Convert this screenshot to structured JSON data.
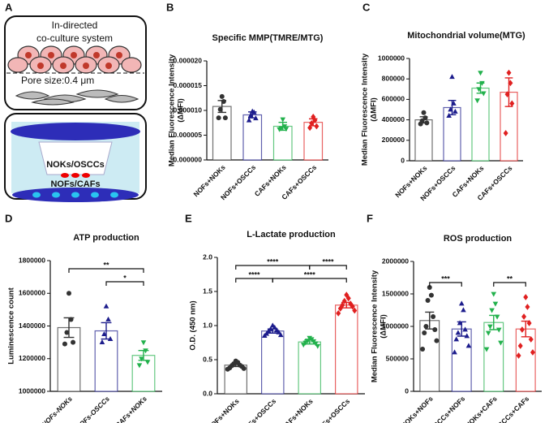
{
  "schematic": {
    "letter": "A",
    "title": [
      "In-directed",
      "co-culture system"
    ],
    "pore": "Pore size:0.4 μm",
    "upper": "NOKs/OSCCs",
    "lower": "NOFs/CAFs"
  },
  "chart_data": [
    {
      "type": "bar",
      "panel": "B",
      "title": "Specific MMP(TMRE/MTG)",
      "ylabel": [
        "Median Fluorescence Intensity",
        "(ΔMFI)"
      ],
      "categories": [
        "NOFs+NOKs",
        "NOFs+OSCCs",
        "CAFs+NOKs",
        "CAFs+OSCCs"
      ],
      "values": [
        1.08e-05,
        9.1e-06,
        6.8e-06,
        7.6e-06
      ],
      "errors": [
        1.2e-06,
        6e-07,
        8e-07,
        7e-07
      ],
      "points": [
        [
          1.28e-05,
          1.18e-05,
          1.02e-05,
          8.5e-06,
          8.5e-06
        ],
        [
          9.8e-06,
          9.6e-06,
          9e-06,
          8.4e-06,
          8e-06
        ],
        [
          8.2e-06,
          6.8e-06,
          6.4e-06,
          6.3e-06,
          6.2e-06
        ],
        [
          8.7e-06,
          8e-06,
          7.4e-06,
          6.8e-06,
          6.5e-06
        ]
      ],
      "colors": [
        "#333333",
        "#1c1c8c",
        "#22b14c",
        "#e02020"
      ],
      "markers": [
        "circle",
        "triangle-up",
        "triangle-down",
        "diamond"
      ],
      "ylim": [
        0,
        2e-05
      ],
      "yticks": [
        {
          "value": 0,
          "label": "0.000000"
        },
        {
          "value": 5e-06,
          "label": "0.000005"
        },
        {
          "value": 1e-05,
          "label": "0.000010"
        },
        {
          "value": 1.5e-05,
          "label": "0.000015"
        },
        {
          "value": 2e-05,
          "label": "0.000020"
        }
      ],
      "annotations": []
    },
    {
      "type": "bar",
      "panel": "C",
      "title": "Mitochondrial volume(MTG)",
      "ylabel": [
        "Median Fluorescence Intensity",
        "(ΔMFI)"
      ],
      "categories": [
        "NOFs+NOKs",
        "NOFs+OSCCs",
        "CAFs+NOKs",
        "CAFs+OSCCs"
      ],
      "values": [
        400000,
        520000,
        710000,
        670000
      ],
      "errors": [
        30000,
        70000,
        50000,
        140000
      ],
      "points": [
        [
          470000,
          420000,
          390000,
          370000,
          360000
        ],
        [
          820000,
          560000,
          500000,
          480000,
          440000
        ],
        [
          860000,
          760000,
          700000,
          660000,
          590000
        ],
        [
          860000,
          760000,
          650000,
          560000,
          270000
        ]
      ],
      "colors": [
        "#333333",
        "#1c1c8c",
        "#22b14c",
        "#e02020"
      ],
      "markers": [
        "circle",
        "triangle-up",
        "triangle-down",
        "diamond"
      ],
      "ylim": [
        0,
        1000000
      ],
      "yticks": [
        0,
        200000,
        400000,
        600000,
        800000,
        1000000
      ],
      "annotations": []
    },
    {
      "type": "bar",
      "panel": "D",
      "title": "ATP production",
      "ylabel": [
        "Luminescence count"
      ],
      "category_style": "italic",
      "categories": [
        "NOFs-NOKs",
        "NOFs-OSCCs",
        "CAFs+NOKs"
      ],
      "values": [
        1390000,
        1370000,
        1220000
      ],
      "errors": [
        60000,
        50000,
        30000
      ],
      "points": [
        [
          1600000,
          1440000,
          1360000,
          1300000,
          1290000
        ],
        [
          1520000,
          1440000,
          1350000,
          1320000,
          1300000
        ],
        [
          1300000,
          1250000,
          1200000,
          1180000,
          1160000
        ]
      ],
      "colors": [
        "#333333",
        "#1c1c8c",
        "#22b14c"
      ],
      "markers": [
        "circle",
        "triangle-up",
        "triangle-down"
      ],
      "ylim": [
        1000000,
        1800000
      ],
      "yticks": [
        1000000,
        1200000,
        1400000,
        1600000,
        1800000
      ],
      "annotations": [
        {
          "text": "*",
          "from": 1,
          "to": 2
        },
        {
          "text": "**",
          "from": 0,
          "to": 2
        }
      ]
    },
    {
      "type": "bar",
      "panel": "E",
      "title": "L-Lactate production",
      "ylabel": [
        "O.D. (450 nm)"
      ],
      "categories": [
        "NOFs+NOKs",
        "NOFs+OSCCs",
        "CAFs+NOKs",
        "CAFs+OSCCs"
      ],
      "values": [
        0.42,
        0.92,
        0.76,
        1.3
      ],
      "errors": [
        0.02,
        0.03,
        0.03,
        0.04
      ],
      "points": [
        [
          0.48,
          0.46,
          0.44,
          0.42,
          0.41,
          0.4,
          0.38,
          0.37,
          0.36
        ],
        [
          1.0,
          0.97,
          0.95,
          0.93,
          0.92,
          0.9,
          0.88,
          0.86,
          0.85
        ],
        [
          0.82,
          0.8,
          0.78,
          0.77,
          0.75,
          0.74,
          0.72,
          0.7
        ],
        [
          1.45,
          1.4,
          1.36,
          1.32,
          1.3,
          1.28,
          1.25,
          1.22,
          1.18
        ]
      ],
      "colors": [
        "#333333",
        "#1c1c8c",
        "#22b14c",
        "#e02020"
      ],
      "markers": [
        "circle",
        "triangle-up",
        "triangle-down",
        "diamond"
      ],
      "ylim": [
        0,
        2.0
      ],
      "yticks": [
        {
          "value": 0,
          "label": "0.0"
        },
        {
          "value": 0.5,
          "label": "0.5"
        },
        {
          "value": 1,
          "label": "1.0"
        },
        {
          "value": 1.5,
          "label": "1.5"
        },
        {
          "value": 2,
          "label": "2.0"
        }
      ],
      "annotations": [
        {
          "text": "****",
          "from": 0,
          "to": 1
        },
        {
          "text": "****",
          "from": 1,
          "to": 3
        },
        {
          "text": "****",
          "from": 0,
          "to": 2
        },
        {
          "text": "****",
          "from": 2,
          "to": 3
        }
      ]
    },
    {
      "type": "bar",
      "panel": "F",
      "title": "ROS production",
      "ylabel": [
        "Median Fluorescence Intensity",
        "(ΔMFI)"
      ],
      "categories": [
        "NOKs+NOFs",
        "OSCCs+NOFs",
        "NOKs+CAFs",
        "OSCCs+CAFs"
      ],
      "values": [
        1090000,
        960000,
        1060000,
        960000
      ],
      "errors": [
        130000,
        110000,
        110000,
        120000
      ],
      "points": [
        [
          1600000,
          1480000,
          1400000,
          1150000,
          1000000,
          950000,
          900000,
          780000,
          650000
        ],
        [
          1350000,
          1250000,
          1050000,
          950000,
          900000,
          850000,
          800000,
          700000,
          600000
        ],
        [
          1500000,
          1350000,
          1250000,
          1150000,
          1000000,
          950000,
          900000,
          750000,
          650000
        ],
        [
          1450000,
          1300000,
          1150000,
          1050000,
          950000,
          800000,
          700000,
          600000,
          550000
        ]
      ],
      "colors": [
        "#333333",
        "#1c1c8c",
        "#22b14c",
        "#e02020"
      ],
      "markers": [
        "circle",
        "triangle-up",
        "triangle-down",
        "diamond"
      ],
      "ylim": [
        0,
        2000000
      ],
      "yticks": [
        0,
        500000,
        1000000,
        1500000,
        2000000
      ],
      "annotations": [
        {
          "text": "***",
          "from": 0,
          "to": 1
        },
        {
          "text": "**",
          "from": 2,
          "to": 3
        }
      ]
    }
  ]
}
